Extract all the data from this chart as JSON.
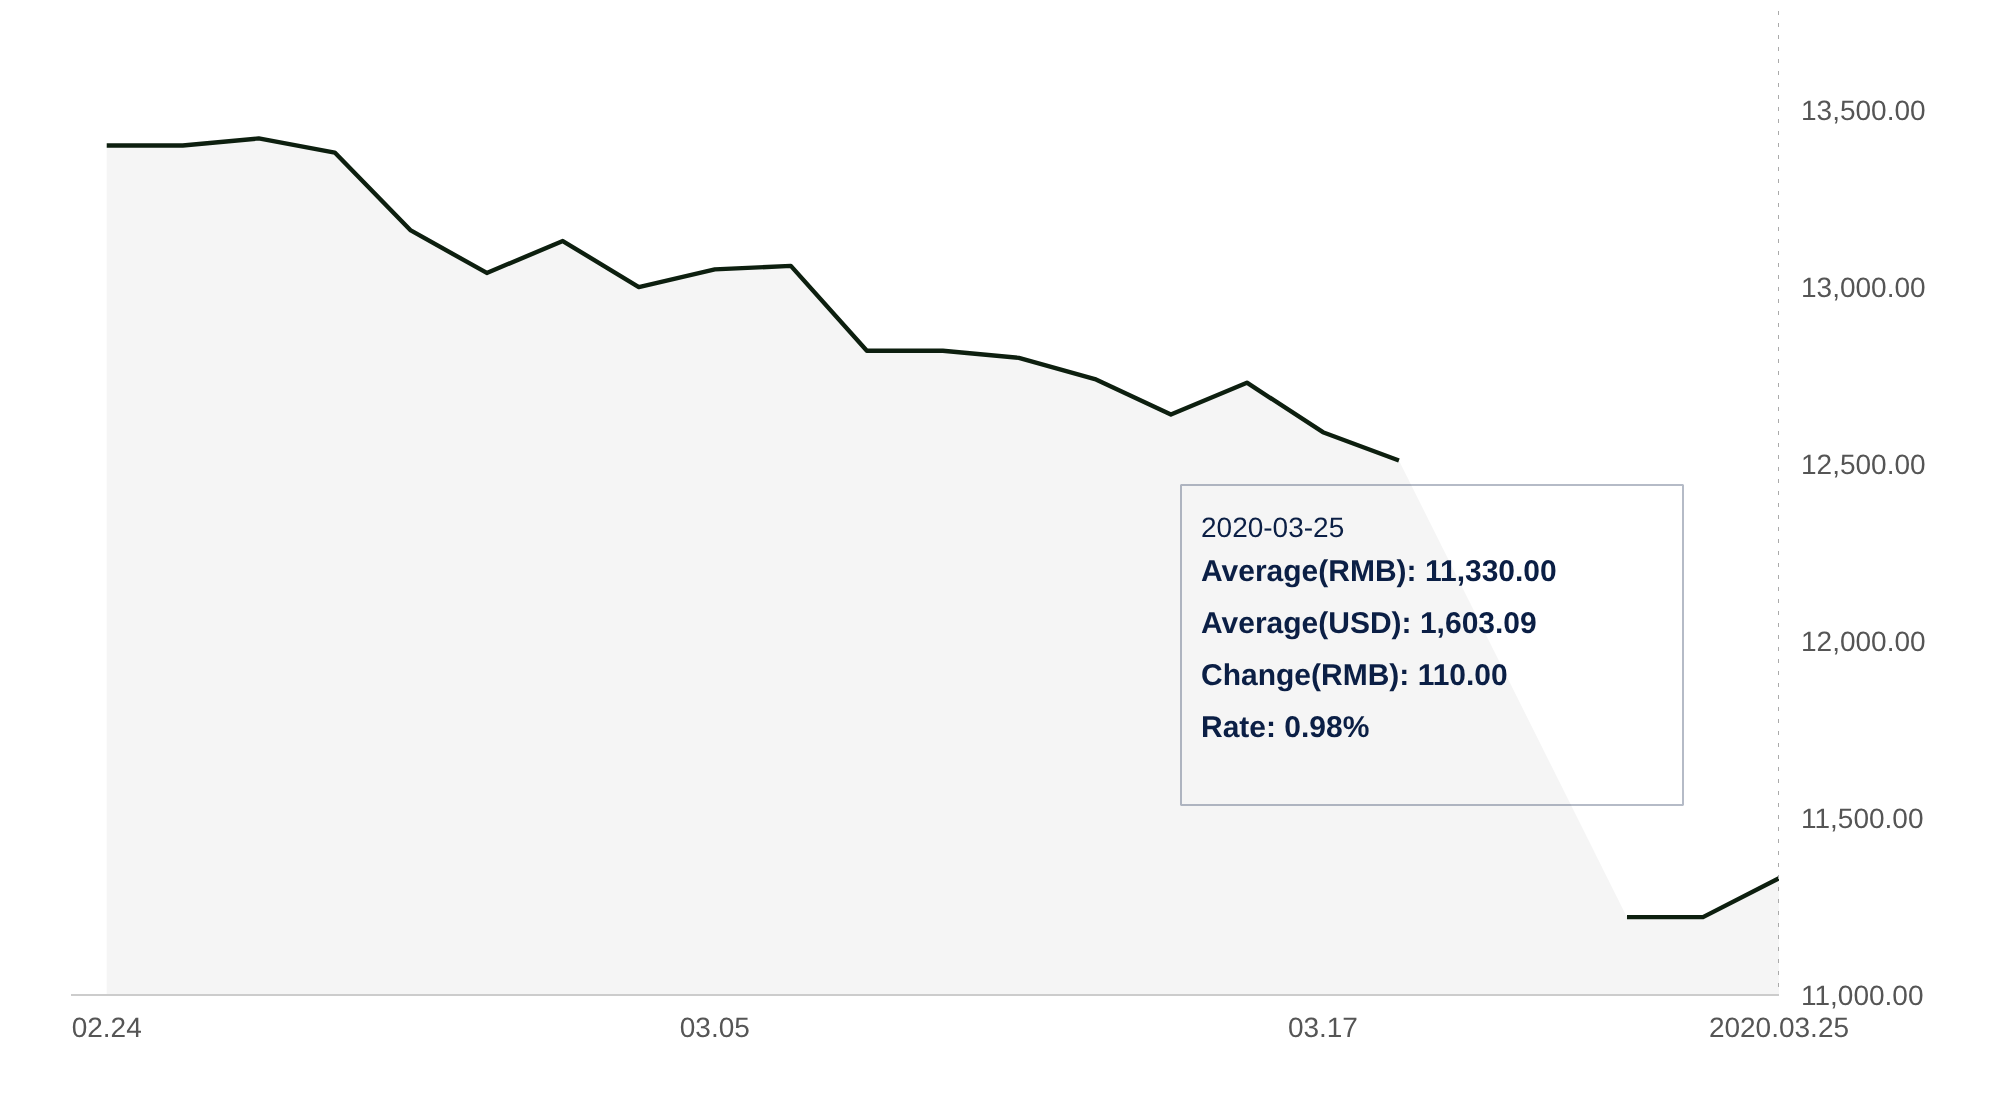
{
  "chart_data": {
    "type": "area",
    "categories": [
      "02.24",
      null,
      null,
      null,
      null,
      null,
      null,
      null,
      "03.05",
      null,
      null,
      null,
      null,
      null,
      null,
      null,
      "03.17",
      null,
      null,
      null,
      null,
      null,
      "2020.03.25"
    ],
    "series": [
      {
        "color": "#0d1f0f",
        "values": [
          13400,
          13400,
          13420,
          13380,
          13160,
          13040,
          13130,
          13000,
          13050,
          13060,
          12820,
          12820,
          12800,
          12740,
          12640,
          12730,
          12590,
          12510,
          null,
          null,
          11220,
          11220,
          11330
        ]
      }
    ],
    "ylim": [
      11000,
      13780
    ],
    "yticks": [
      {
        "value": 11000,
        "label": "11,000.00"
      },
      {
        "value": 11500,
        "label": "11,500.00"
      },
      {
        "value": 12000,
        "label": "12,000.00"
      },
      {
        "value": 12500,
        "label": "12,500.00"
      },
      {
        "value": 13000,
        "label": "13,000.00"
      },
      {
        "value": 13500,
        "label": "13,500.00"
      }
    ],
    "ref_lines": [
      {
        "axis": "x",
        "value": "2020.03.25",
        "color": "#aaaaaa",
        "line_style": "dotted"
      }
    ],
    "annotations": [
      "2020-03-25",
      "Average(RMB):  11,330.00",
      "Average(USD):  1,603.09",
      "Change(RMB):  110.00",
      "Rate:  0.98%"
    ],
    "grid": false,
    "marker": "none",
    "line_style": "solid"
  }
}
